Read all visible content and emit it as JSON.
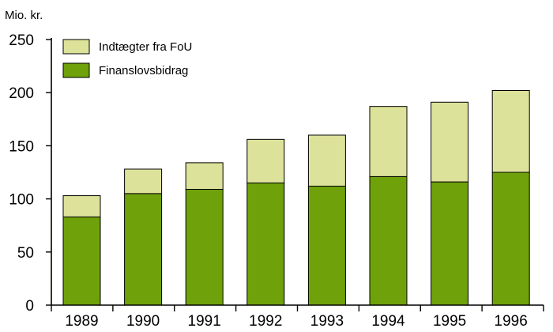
{
  "chart_data": {
    "type": "bar",
    "stacked": true,
    "unit_label": "Mio. kr.",
    "title": "",
    "xlabel": "",
    "ylabel": "",
    "categories": [
      "1989",
      "1990",
      "1991",
      "1992",
      "1993",
      "1994",
      "1995",
      "1996"
    ],
    "series": [
      {
        "name": "Finanslovsbidrag",
        "color": "#6fa10a",
        "values": [
          83,
          105,
          109,
          115,
          112,
          121,
          116,
          125
        ]
      },
      {
        "name": "Indtægter fra FoU",
        "color": "#dde29a",
        "values": [
          20,
          23,
          25,
          41,
          48,
          66,
          75,
          77
        ]
      }
    ],
    "ylim": [
      0,
      250
    ],
    "yticks": [
      0,
      50,
      100,
      150,
      200,
      250
    ],
    "grid": false,
    "legend_position": "top-left",
    "legend_order": [
      "Indtægter fra FoU",
      "Finanslovsbidrag"
    ]
  }
}
